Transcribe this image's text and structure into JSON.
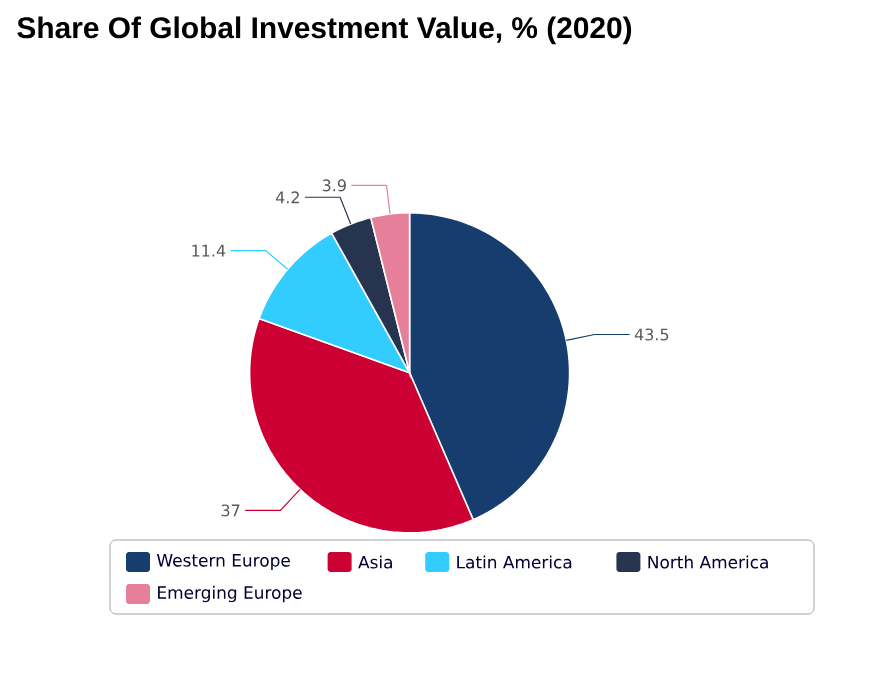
{
  "chart_data": {
    "type": "pie",
    "title": "Share Of Global Investment Value, % (2020)",
    "categories": [
      "Western Europe",
      "Asia",
      "Latin America",
      "North America",
      "Emerging Europe"
    ],
    "values": [
      43.5,
      37,
      11.4,
      4.2,
      3.9
    ],
    "colors": [
      "#163d6e",
      "#cc0033",
      "#33ccff",
      "#273450",
      "#e6809a"
    ],
    "data_labels": true,
    "legend": "bottom"
  }
}
